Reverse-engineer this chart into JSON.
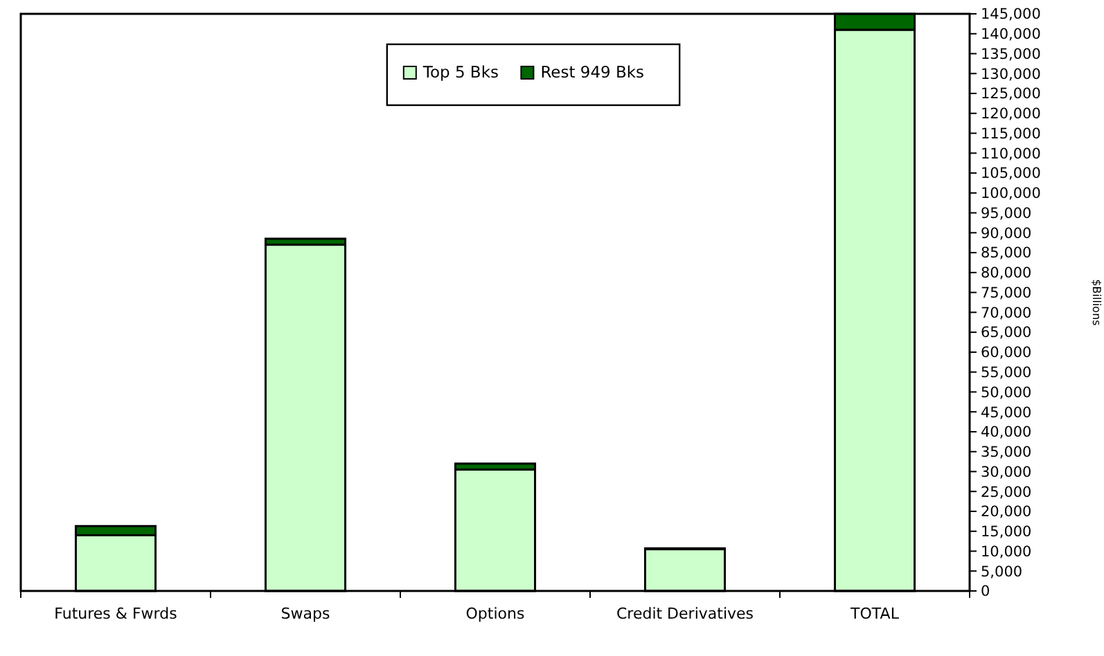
{
  "chart_data": {
    "type": "bar",
    "stacked": true,
    "ylabel": "$Billions",
    "categories": [
      "Futures & Fwrds",
      "Swaps",
      "Options",
      "Credit Derivatives",
      "TOTAL"
    ],
    "series": [
      {
        "name": "Top 5 Bks",
        "color": "#ccffcc",
        "values": [
          14000,
          87000,
          30500,
          10500,
          141000
        ]
      },
      {
        "name": "Rest 949 Bks",
        "color": "#006600",
        "values": [
          2300,
          1500,
          1500,
          200,
          4000
        ]
      }
    ],
    "ylim": [
      0,
      145000
    ],
    "yticks": [
      0,
      {
        "value": 5000,
        "label": "5,000"
      },
      {
        "value": 10000,
        "label": "10,000"
      },
      {
        "value": 15000,
        "label": "15,000"
      },
      {
        "value": 20000,
        "label": "20,000"
      },
      {
        "value": 25000,
        "label": "25,000"
      },
      {
        "value": 30000,
        "label": "30,000"
      },
      {
        "value": 35000,
        "label": "35,000"
      },
      {
        "value": 40000,
        "label": "40,000"
      },
      {
        "value": 45000,
        "label": "45,000"
      },
      {
        "value": 50000,
        "label": "50,000"
      },
      {
        "value": 55000,
        "label": "55,000"
      },
      {
        "value": 60000,
        "label": "60,000"
      },
      {
        "value": 65000,
        "label": "65,000"
      },
      {
        "value": 70000,
        "label": "70,000"
      },
      {
        "value": 75000,
        "label": "75,000"
      },
      {
        "value": 80000,
        "label": "80,000"
      },
      {
        "value": 85000,
        "label": "85,000"
      },
      {
        "value": 90000,
        "label": "90,000"
      },
      {
        "value": 95000,
        "label": "95,000"
      },
      {
        "value": 100000,
        "label": "100,000"
      },
      {
        "value": 105000,
        "label": "105,000"
      },
      {
        "value": 110000,
        "label": "110,000"
      },
      {
        "value": 115000,
        "label": "115,000"
      },
      {
        "value": 120000,
        "label": "120,000"
      },
      {
        "value": 125000,
        "label": "125,000"
      },
      {
        "value": 130000,
        "label": "130,000"
      },
      {
        "value": 135000,
        "label": "135,000"
      },
      {
        "value": 140000,
        "label": "140,000"
      },
      {
        "value": 145000,
        "label": "145,000"
      }
    ],
    "grid": false,
    "legend": "top"
  }
}
